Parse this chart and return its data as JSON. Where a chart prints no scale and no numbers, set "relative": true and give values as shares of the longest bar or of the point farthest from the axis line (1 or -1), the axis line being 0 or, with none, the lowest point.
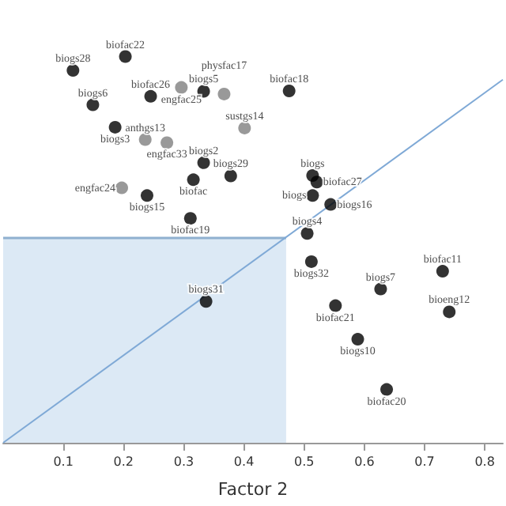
{
  "chart_data": {
    "type": "scatter",
    "xlabel": "Factor 2",
    "relative": true,
    "xlim": [
      0,
      0.83
    ],
    "xticks": [
      0.1,
      0.2,
      0.3,
      0.4,
      0.5,
      0.6,
      0.7,
      0.8
    ],
    "tick_labels": "x",
    "grid": false,
    "marker": "circle",
    "series": [
      {
        "type": "area",
        "color": "#dce9f5",
        "marker": "none",
        "x": [
          0,
          0.47
        ],
        "values": [
          0.53,
          0.53
        ]
      },
      {
        "type": "line",
        "color": "#7fa9d6",
        "marker": "none",
        "x": [
          0,
          0.83
        ],
        "values": [
          0,
          0.94
        ]
      },
      {
        "color": "#000000",
        "x": [
          0.203,
          0.116,
          0.333,
          0.245,
          0.149,
          0.475,
          0.186,
          0.333,
          0.378,
          0.316,
          0.239,
          0.311,
          0.514,
          0.521,
          0.514,
          0.544,
          0.505,
          0.512,
          0.73,
          0.627,
          0.552,
          0.741,
          0.589,
          0.637,
          0.337
        ],
        "values": [
          1.0,
          0.964,
          0.91,
          0.897,
          0.875,
          0.911,
          0.817,
          0.725,
          0.691,
          0.681,
          0.64,
          0.581,
          0.692,
          0.675,
          0.64,
          0.617,
          0.542,
          0.469,
          0.444,
          0.398,
          0.355,
          0.339,
          0.268,
          0.138,
          0.366
        ]
      },
      {
        "color": "#808080",
        "x": [
          0.296,
          0.367,
          0.236,
          0.272,
          0.401,
          0.197
        ],
        "values": [
          0.92,
          0.903,
          0.785,
          0.777,
          0.815,
          0.66
        ]
      }
    ],
    "annotations": [
      {
        "text": "biofac22",
        "x": 0.203,
        "y": 1.0
      },
      {
        "text": "biogs28",
        "x": 0.116,
        "y": 0.964
      },
      {
        "text": "biogs5",
        "x": 0.333,
        "y": 0.91
      },
      {
        "text": "biofac26",
        "x": 0.245,
        "y": 0.897
      },
      {
        "text": "biogs6",
        "x": 0.149,
        "y": 0.875
      },
      {
        "text": "biofac18",
        "x": 0.475,
        "y": 0.911
      },
      {
        "text": "biogs3",
        "x": 0.186,
        "y": 0.817
      },
      {
        "text": "biogs2",
        "x": 0.333,
        "y": 0.725
      },
      {
        "text": "biogs29",
        "x": 0.378,
        "y": 0.691
      },
      {
        "text": "biofac",
        "x": 0.316,
        "y": 0.681
      },
      {
        "text": "biogs15",
        "x": 0.239,
        "y": 0.64
      },
      {
        "text": "biofac19",
        "x": 0.311,
        "y": 0.581
      },
      {
        "text": "biogs",
        "x": 0.514,
        "y": 0.692
      },
      {
        "text": "biofac27",
        "x": 0.521,
        "y": 0.675
      },
      {
        "text": "biogs",
        "x": 0.514,
        "y": 0.64
      },
      {
        "text": "biogs16",
        "x": 0.544,
        "y": 0.617
      },
      {
        "text": "biogs4",
        "x": 0.505,
        "y": 0.542
      },
      {
        "text": "biogs32",
        "x": 0.512,
        "y": 0.469
      },
      {
        "text": "biofac11",
        "x": 0.73,
        "y": 0.444
      },
      {
        "text": "biogs7",
        "x": 0.627,
        "y": 0.398
      },
      {
        "text": "biofac21",
        "x": 0.552,
        "y": 0.355
      },
      {
        "text": "bioeng12",
        "x": 0.741,
        "y": 0.339
      },
      {
        "text": "biogs10",
        "x": 0.589,
        "y": 0.268
      },
      {
        "text": "biofac20",
        "x": 0.637,
        "y": 0.138
      },
      {
        "text": "biogs31",
        "x": 0.337,
        "y": 0.366
      },
      {
        "text": "engfac25",
        "x": 0.296,
        "y": 0.92
      },
      {
        "text": "physfac17",
        "x": 0.367,
        "y": 0.903
      },
      {
        "text": "anthgs13",
        "x": 0.236,
        "y": 0.785
      },
      {
        "text": "engfac33",
        "x": 0.272,
        "y": 0.777
      },
      {
        "text": "sustgs14",
        "x": 0.401,
        "y": 0.815
      },
      {
        "text": "engfac24",
        "x": 0.197,
        "y": 0.66
      }
    ]
  }
}
